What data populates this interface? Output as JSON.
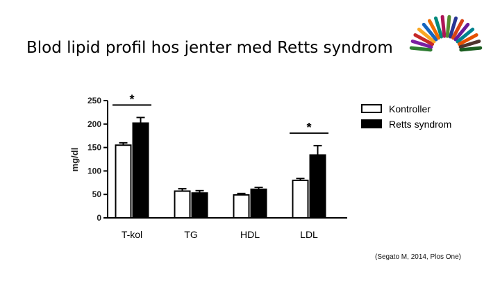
{
  "slide": {
    "title": "Blod lipid profil hos jenter med Retts syndrom",
    "citation": "(Segato M, 2014, Plos One)"
  },
  "logo": {
    "icon": "rainbow-arc-logo",
    "colors": [
      "#2e7d32",
      "#7b1fa2",
      "#c62828",
      "#f9a825",
      "#1565c0",
      "#ef6c00",
      "#00897b",
      "#ad1457",
      "#558b2f",
      "#283593",
      "#d84315",
      "#6a1b9a",
      "#00838f",
      "#e65100",
      "#4e342e",
      "#1b5e20"
    ]
  },
  "chart_data": {
    "type": "bar",
    "ylabel": "mg/dl",
    "xlabel": "",
    "ylim": [
      0,
      250
    ],
    "yticks": [
      "0",
      "50",
      "100",
      "150",
      "200",
      "250"
    ],
    "categories": [
      "T-kol",
      "TG",
      "HDL",
      "LDL"
    ],
    "series": [
      {
        "name": "Kontroller",
        "values": [
          155,
          57,
          49,
          80
        ],
        "errors": [
          5,
          5,
          3,
          4
        ],
        "fill": "#ffffff"
      },
      {
        "name": "Retts syndrom",
        "values": [
          202,
          53,
          61,
          134
        ],
        "errors": [
          12,
          5,
          4,
          20
        ],
        "fill": "#000000"
      }
    ],
    "annotations": [
      {
        "text": "*",
        "category": "T-kol"
      },
      {
        "text": "*",
        "category": "LDL"
      }
    ],
    "legend_position": "top-right",
    "grid": false
  }
}
